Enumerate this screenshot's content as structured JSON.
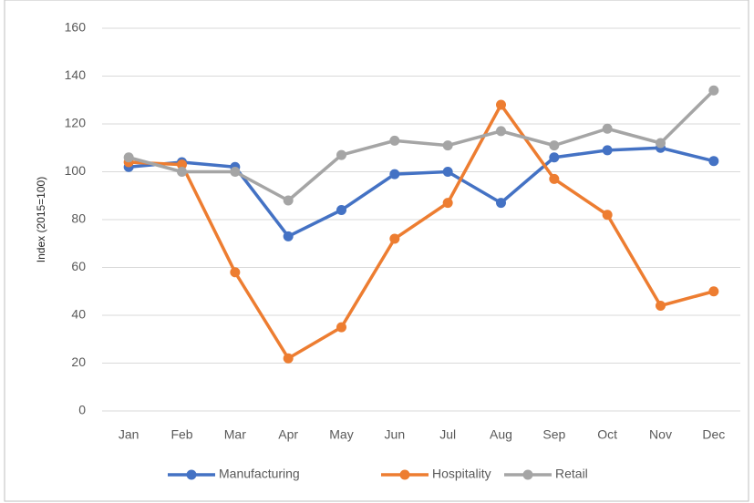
{
  "chart_data": {
    "type": "line",
    "y_label": "Index (2015=100)",
    "categories": [
      "Jan",
      "Feb",
      "Mar",
      "Apr",
      "May",
      "Jun",
      "Jul",
      "Aug",
      "Sep",
      "Oct",
      "Nov",
      "Dec"
    ],
    "series": [
      {
        "name": "Manufacturing",
        "color": "#4472c4",
        "values": [
          102,
          104,
          102,
          73,
          84,
          99,
          100,
          87,
          106,
          109,
          110,
          104.5
        ]
      },
      {
        "name": "Hospitality",
        "color": "#ed7d31",
        "values": [
          104,
          103,
          58,
          22,
          35,
          72,
          87,
          128,
          97,
          82,
          44,
          50
        ]
      },
      {
        "name": "Retail",
        "color": "#a5a5a5",
        "values": [
          106,
          100,
          100,
          88,
          107,
          113,
          111,
          117,
          111,
          118,
          112,
          134
        ]
      }
    ],
    "ylim": [
      0,
      160
    ],
    "yticks": [
      0,
      20,
      40,
      60,
      80,
      100,
      120,
      140,
      160
    ],
    "grid": true,
    "legend": "bottom"
  }
}
